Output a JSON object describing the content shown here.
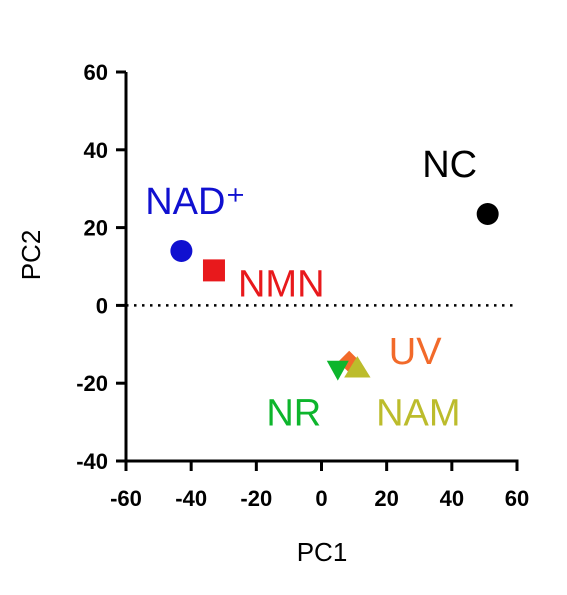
{
  "chart_data": {
    "type": "scatter",
    "xlabel": "PC1",
    "ylabel": "PC2",
    "xlim": [
      -60,
      60
    ],
    "ylim": [
      -40,
      60
    ],
    "x_ticks": [
      -60,
      -40,
      -20,
      0,
      20,
      40,
      60
    ],
    "y_ticks": [
      -40,
      -20,
      0,
      20,
      40,
      60
    ],
    "x_tick_labels": [
      "-60",
      "-40",
      "-20",
      "0",
      "20",
      "40",
      "60"
    ],
    "y_tick_labels": [
      "-40",
      "-20",
      "0",
      "20",
      "40",
      "60"
    ],
    "reference_line": {
      "y": 0,
      "style": "dotted"
    },
    "grid": false,
    "points": [
      {
        "label": "NC",
        "x": 51,
        "y": 23.5,
        "marker": "circle",
        "color": "#000000"
      },
      {
        "label": "NAD⁺",
        "x": -43,
        "y": 14,
        "marker": "circle",
        "color": "#1010d0"
      },
      {
        "label": "NMN",
        "x": -33,
        "y": 9,
        "marker": "square",
        "color": "#e8191c"
      },
      {
        "label": "UV",
        "x": 8.5,
        "y": -14.5,
        "marker": "diamond",
        "color": "#f26a2a"
      },
      {
        "label": "NR",
        "x": 5,
        "y": -16.5,
        "marker": "triangle-down",
        "color": "#0db52c"
      },
      {
        "label": "NAM",
        "x": 11,
        "y": -16,
        "marker": "triangle-up",
        "color": "#bcbc2c"
      }
    ]
  }
}
